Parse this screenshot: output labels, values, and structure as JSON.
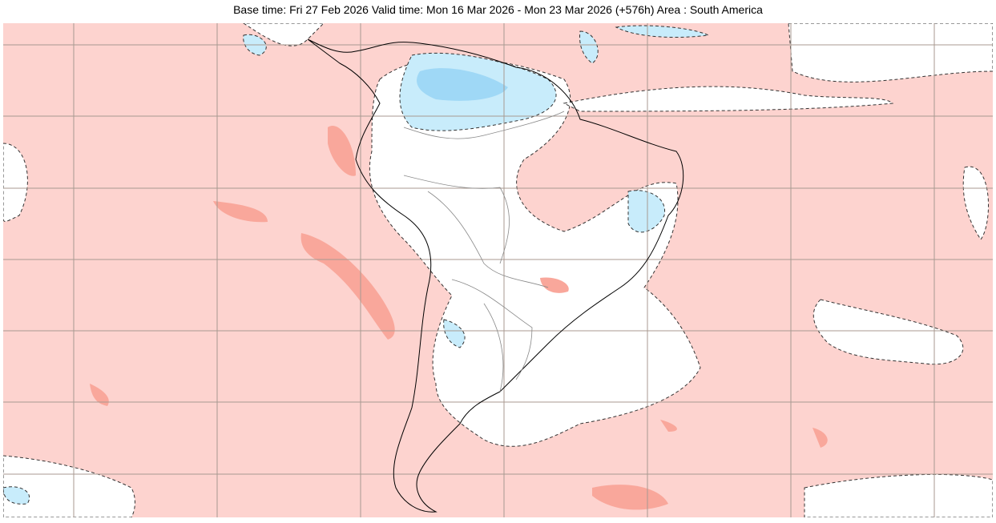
{
  "header": {
    "title": "Base time: Fri 27 Feb 2026 Valid time: Mon 16 Mar 2026 - Mon 23 Mar 2026 (+576h) Area : South America"
  },
  "map": {
    "area": "South America",
    "colors": {
      "weak_positive": "#fdd3cf",
      "strong_positive": "#f9a79b",
      "neutral": "#ffffff",
      "weak_negative": "#c8ecfb",
      "strong_negative": "#9fd8f6",
      "coastline": "#000000",
      "borders": "#888888",
      "grid": "#a89a90"
    }
  }
}
